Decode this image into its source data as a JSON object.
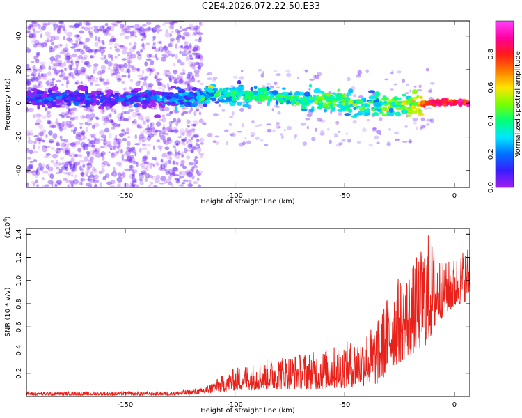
{
  "title": "C2E4.2026.072.22.50.E33",
  "colors": {
    "snr_line": "#e8211a",
    "axis": "#000000",
    "colorbar_stops": [
      "#a020f0",
      "#3a1cff",
      "#0070ff",
      "#00e5ff",
      "#00ff7a",
      "#7aff00",
      "#ffe400",
      "#ff7a00",
      "#ff1a1a",
      "#ff00a0",
      "#ff40ff"
    ]
  },
  "chart_data": [
    {
      "type": "heatmap",
      "xlabel": "Height of straight line (km)",
      "ylabel": "Frequency (Hz)",
      "xlim": [
        -195,
        7
      ],
      "ylim": [
        -50,
        49
      ],
      "xticks": [
        -150,
        -100,
        -50,
        0
      ],
      "yticks": [
        -40,
        -20,
        0,
        20,
        40
      ],
      "colorbar": {
        "label": "Normalized spectral amplitude",
        "range": [
          0,
          1
        ],
        "ticks": [
          0.0,
          0.2,
          0.4,
          0.6,
          0.8
        ]
      },
      "ridge": [
        {
          "x": -190,
          "f": 3.0,
          "amp": 0.12
        },
        {
          "x": -150,
          "f": 3.5,
          "amp": 0.13
        },
        {
          "x": -120,
          "f": 3.0,
          "amp": 0.22
        },
        {
          "x": -110,
          "f": 5.5,
          "amp": 0.35
        },
        {
          "x": -90,
          "f": 5.0,
          "amp": 0.4
        },
        {
          "x": -70,
          "f": 2.0,
          "amp": 0.42
        },
        {
          "x": -55,
          "f": 1.0,
          "amp": 0.45
        },
        {
          "x": -40,
          "f": -2.0,
          "amp": 0.4
        },
        {
          "x": -25,
          "f": -1.0,
          "amp": 0.45
        },
        {
          "x": -15,
          "f": 0.0,
          "amp": 0.7
        },
        {
          "x": -5,
          "f": 0.5,
          "amp": 0.9
        },
        {
          "x": 7,
          "f": 0.5,
          "amp": 0.8
        }
      ]
    },
    {
      "type": "line",
      "xlabel": "Height of straight line (km)",
      "ylabel": "SNR (10 * v/v)",
      "y_multiplier": "(x10^4)",
      "xlim": [
        -195,
        7
      ],
      "ylim": [
        0,
        1.45
      ],
      "xticks": [
        -150,
        -100,
        -50,
        0
      ],
      "yticks": [
        0.2,
        0.4,
        0.6,
        0.8,
        1.0,
        1.2,
        1.4
      ],
      "ytick_labels": [
        "0.2",
        "0.4",
        "0.6",
        "0.8",
        "1.0",
        "1.2",
        "1.4"
      ],
      "envelope": [
        {
          "x": -195,
          "lo": 0.01,
          "hi": 0.04
        },
        {
          "x": -130,
          "lo": 0.01,
          "hi": 0.04
        },
        {
          "x": -115,
          "lo": 0.02,
          "hi": 0.07
        },
        {
          "x": -100,
          "lo": 0.05,
          "hi": 0.25
        },
        {
          "x": -80,
          "lo": 0.06,
          "hi": 0.35
        },
        {
          "x": -60,
          "lo": 0.06,
          "hi": 0.4
        },
        {
          "x": -45,
          "lo": 0.08,
          "hi": 0.5
        },
        {
          "x": -35,
          "lo": 0.1,
          "hi": 0.65
        },
        {
          "x": -28,
          "lo": 0.25,
          "hi": 1.0
        },
        {
          "x": -20,
          "lo": 0.35,
          "hi": 1.1
        },
        {
          "x": -12,
          "lo": 0.45,
          "hi": 1.42
        },
        {
          "x": -5,
          "lo": 0.7,
          "hi": 1.15
        },
        {
          "x": 0,
          "lo": 0.75,
          "hi": 1.2
        },
        {
          "x": 7,
          "lo": 0.85,
          "hi": 1.33
        }
      ]
    }
  ]
}
